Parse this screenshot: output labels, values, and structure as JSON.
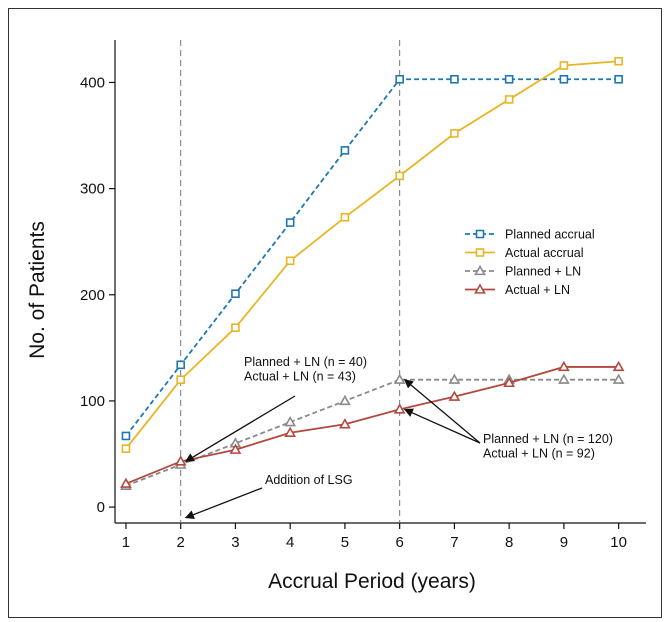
{
  "chart_data": {
    "type": "line",
    "xlabel": "Accrual Period (years)",
    "ylabel": "No. of Patients",
    "x": [
      1,
      2,
      3,
      4,
      5,
      6,
      7,
      8,
      9,
      10
    ],
    "xlim": [
      0.8,
      10.5
    ],
    "ylim": [
      -15,
      440
    ],
    "x_ticks": [
      1,
      2,
      3,
      4,
      5,
      6,
      7,
      8,
      9,
      10
    ],
    "y_ticks": [
      0,
      100,
      200,
      300,
      400
    ],
    "grid": false,
    "legend_position": "right",
    "reference_lines_x": [
      2,
      6
    ],
    "series": [
      {
        "name": "Planned accrual",
        "values": [
          67,
          134,
          201,
          268,
          336,
          403,
          403,
          403,
          403,
          403
        ],
        "color": "#1f77b4",
        "dash": true,
        "marker": "square"
      },
      {
        "name": "Actual accrual",
        "values": [
          55,
          120,
          169,
          232,
          273,
          312,
          352,
          384,
          416,
          420
        ],
        "color": "#e8b523",
        "dash": false,
        "marker": "square"
      },
      {
        "name": "Planned + LN",
        "values": [
          20,
          40,
          60,
          80,
          100,
          120,
          120,
          120,
          120,
          120
        ],
        "color": "#8a8a8a",
        "dash": true,
        "marker": "triangle"
      },
      {
        "name": "Actual + LN",
        "values": [
          22,
          43,
          54,
          70,
          78,
          92,
          104,
          117,
          132,
          132
        ],
        "color": "#b4483e",
        "dash": false,
        "marker": "triangle"
      }
    ],
    "annotations": [
      {
        "lines": [
          "Planned + LN (n = 40)",
          "Actual + LN (n = 43)"
        ],
        "arrow_targets": [
          [
            2,
            43
          ]
        ]
      },
      {
        "lines": [
          "Addition of LSG"
        ],
        "arrow_targets": [
          [
            2,
            -10
          ]
        ]
      },
      {
        "lines": [
          "Planned + LN (n = 120)",
          "Actual + LN (n = 92)"
        ],
        "arrow_targets": [
          [
            6,
            120
          ],
          [
            6,
            92
          ]
        ]
      }
    ]
  }
}
